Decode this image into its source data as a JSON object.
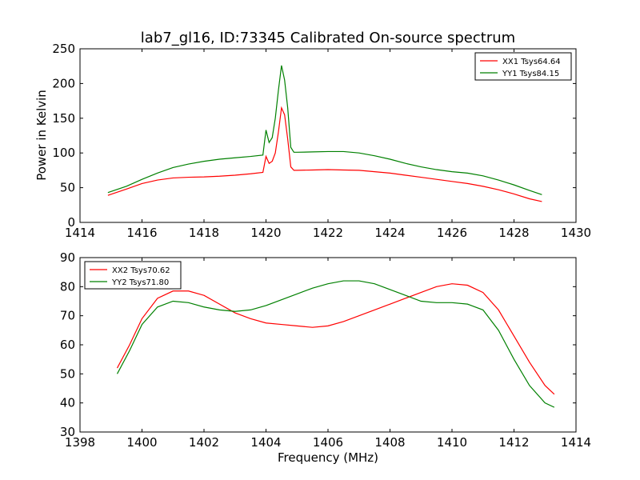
{
  "chart_data": [
    {
      "type": "line",
      "title": "lab7_gl16, ID:73345 Calibrated On-source spectrum",
      "xlabel": "",
      "ylabel": "Power in Kelvin",
      "xlim": [
        1414,
        1430
      ],
      "ylim": [
        0,
        250
      ],
      "xticks": [
        "1414",
        "1416",
        "1418",
        "1420",
        "1422",
        "1424",
        "1426",
        "1428",
        "1430"
      ],
      "yticks": [
        "0",
        "50",
        "100",
        "150",
        "200",
        "250"
      ],
      "legend": "top-right",
      "grid": false,
      "series": [
        {
          "name": "XX1 Tsys64.64",
          "color": "#ff0000",
          "x": [
            1414.9,
            1415.5,
            1416.0,
            1416.5,
            1417.0,
            1417.5,
            1418.0,
            1418.5,
            1419.0,
            1419.5,
            1419.9,
            1420.0,
            1420.1,
            1420.2,
            1420.3,
            1420.4,
            1420.5,
            1420.6,
            1420.7,
            1420.8,
            1420.9,
            1421.0,
            1421.5,
            1422.0,
            1422.5,
            1423.0,
            1423.5,
            1424.0,
            1424.5,
            1425.0,
            1425.5,
            1426.0,
            1426.5,
            1427.0,
            1427.5,
            1428.0,
            1428.5,
            1428.9
          ],
          "values": [
            39,
            48,
            56,
            61,
            64,
            65,
            65.5,
            66.5,
            68,
            70,
            72,
            95,
            85,
            88,
            100,
            130,
            165,
            155,
            120,
            80,
            75,
            75,
            75.5,
            76,
            75.5,
            75,
            73,
            71,
            68,
            65,
            62,
            59,
            56,
            52,
            47,
            41,
            34,
            30
          ]
        },
        {
          "name": "YY1 Tsys84.15",
          "color": "#008000",
          "x": [
            1414.9,
            1415.5,
            1416.0,
            1416.5,
            1417.0,
            1417.5,
            1418.0,
            1418.5,
            1419.0,
            1419.5,
            1419.9,
            1420.0,
            1420.1,
            1420.2,
            1420.3,
            1420.4,
            1420.5,
            1420.6,
            1420.7,
            1420.8,
            1420.9,
            1421.0,
            1421.5,
            1422.0,
            1422.5,
            1423.0,
            1423.5,
            1424.0,
            1424.5,
            1425.0,
            1425.5,
            1426.0,
            1426.5,
            1427.0,
            1427.5,
            1428.0,
            1428.5,
            1428.9
          ],
          "values": [
            43,
            52,
            62,
            71,
            79,
            84,
            88,
            91,
            93,
            95,
            97,
            133,
            115,
            122,
            150,
            190,
            226,
            205,
            165,
            108,
            101,
            101,
            101.5,
            102,
            102,
            100,
            96,
            91,
            85,
            80,
            76,
            73,
            71,
            67,
            61,
            54,
            46,
            40
          ]
        }
      ]
    },
    {
      "type": "line",
      "title": "",
      "xlabel": "Frequency (MHz)",
      "ylabel": "",
      "xlim": [
        1398,
        1414
      ],
      "ylim": [
        30,
        90
      ],
      "xticks": [
        "1398",
        "1400",
        "1402",
        "1404",
        "1406",
        "1408",
        "1410",
        "1412",
        "1414"
      ],
      "yticks": [
        "30",
        "40",
        "50",
        "60",
        "70",
        "80",
        "90"
      ],
      "legend": "top-left",
      "grid": false,
      "series": [
        {
          "name": "XX2 Tsys70.62",
          "color": "#ff0000",
          "x": [
            1399.2,
            1399.6,
            1400.0,
            1400.5,
            1401.0,
            1401.5,
            1402.0,
            1402.5,
            1403.0,
            1403.5,
            1404.0,
            1404.5,
            1405.0,
            1405.5,
            1406.0,
            1406.5,
            1407.0,
            1407.5,
            1408.0,
            1408.5,
            1409.0,
            1409.5,
            1410.0,
            1410.5,
            1411.0,
            1411.5,
            1412.0,
            1412.5,
            1413.0,
            1413.3
          ],
          "values": [
            52,
            60,
            69,
            76,
            78.5,
            78.5,
            77,
            74,
            71,
            69,
            67.5,
            67,
            66.5,
            66,
            66.5,
            68,
            70,
            72,
            74,
            76,
            78,
            80,
            81,
            80.5,
            78,
            72,
            63,
            54,
            46,
            43
          ]
        },
        {
          "name": "YY2 Tsys71.80",
          "color": "#008000",
          "x": [
            1399.2,
            1399.6,
            1400.0,
            1400.5,
            1401.0,
            1401.5,
            1402.0,
            1402.5,
            1403.0,
            1403.5,
            1404.0,
            1404.5,
            1405.0,
            1405.5,
            1406.0,
            1406.5,
            1407.0,
            1407.5,
            1408.0,
            1408.5,
            1409.0,
            1409.5,
            1410.0,
            1410.5,
            1411.0,
            1411.5,
            1412.0,
            1412.5,
            1413.0,
            1413.3
          ],
          "values": [
            50,
            58,
            67,
            73,
            75,
            74.5,
            73,
            72,
            71.5,
            72,
            73.5,
            75.5,
            77.5,
            79.5,
            81,
            82,
            82,
            81,
            79,
            77,
            75,
            74.5,
            74.5,
            74,
            72,
            65,
            55,
            46,
            40,
            38.5
          ]
        }
      ]
    }
  ]
}
